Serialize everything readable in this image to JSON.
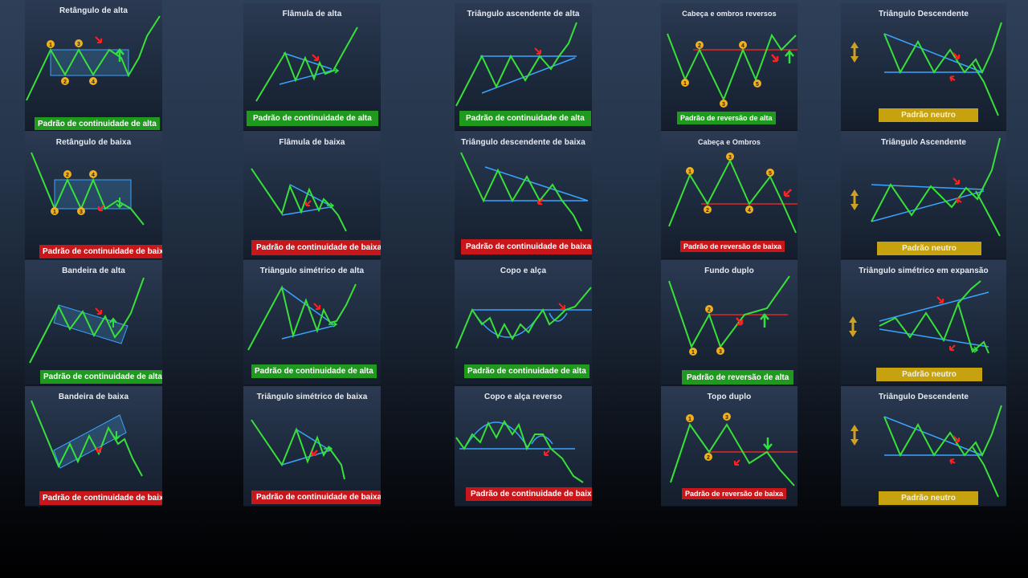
{
  "colors": {
    "line": "#38e038",
    "trend": "#3aa3ff",
    "level": "#e02828",
    "arrow_up": "#2fe040",
    "arrow_down": "#ff2020",
    "marker": "#f0b020",
    "neutral": "#d0a020"
  },
  "cards": [
    {
      "title": "Retângulo de alta",
      "label": "Padrão de continuidade de alta",
      "type": "green"
    },
    {
      "title": "Flâmula de alta",
      "label": "Padrão de continuidade de alta",
      "type": "green"
    },
    {
      "title": "Triângulo ascendente de alta",
      "label": "Padrão de continuidade de alta",
      "type": "green"
    },
    {
      "title": "Cabeça e ombros reversos",
      "label": "Padrão de reversão de alta",
      "type": "green"
    },
    {
      "title": "Triângulo Descendente",
      "label": "Padrão neutro",
      "type": "gold"
    },
    {
      "title": "Retângulo de baixa",
      "label": "Padrão de continuidade de baixa",
      "type": "red"
    },
    {
      "title": "Flâmula de baixa",
      "label": "Padrão de continuidade de baixa",
      "type": "red"
    },
    {
      "title": "Triângulo descendente de baixa",
      "label": "Padrão de continuidade de baixa",
      "type": "red"
    },
    {
      "title": "Cabeça e Ombros",
      "label": "Padrão de reversão de baixa",
      "type": "red"
    },
    {
      "title": "Triângulo Ascendente",
      "label": "Padrão neutro",
      "type": "gold"
    },
    {
      "title": "Bandeira de alta",
      "label": "Padrão de continuidade de alta",
      "type": "green"
    },
    {
      "title": "Triângulo simétrico de alta",
      "label": "Padrão de continuidade de alta",
      "type": "green"
    },
    {
      "title": "Copo e alça",
      "label": "Padrão de continuidade de alta",
      "type": "green"
    },
    {
      "title": "Fundo duplo",
      "label": "Padrão de reversão de alta",
      "type": "green"
    },
    {
      "title": "Triângulo simétrico em expansão",
      "label": "Padrão neutro",
      "type": "gold"
    },
    {
      "title": "Bandeira de baixa",
      "label": "Padrão de continuidade de baixa",
      "type": "red"
    },
    {
      "title": "Triângulo simétrico de baixa",
      "label": "Padrão de continuidade de baixa",
      "type": "red"
    },
    {
      "title": "Copo e alça reverso",
      "label": "Padrão de continuidade de baixa",
      "type": "red"
    },
    {
      "title": "Topo duplo",
      "label": "Padrão de reversão de baixa",
      "type": "red"
    },
    {
      "title": "Triângulo Descendente",
      "label": "Padrão neutro",
      "type": "gold"
    }
  ],
  "markers": {
    "c0": [
      "1",
      "3",
      "2",
      "4"
    ],
    "c3": [
      "2",
      "4",
      "1",
      "5",
      "3"
    ],
    "c5": [
      "2",
      "4",
      "1",
      "3"
    ],
    "c8": [
      "1",
      "3",
      "5",
      "2",
      "4"
    ],
    "c13": [
      "2",
      "1",
      "3"
    ],
    "c18": [
      "1",
      "3",
      "2"
    ]
  }
}
